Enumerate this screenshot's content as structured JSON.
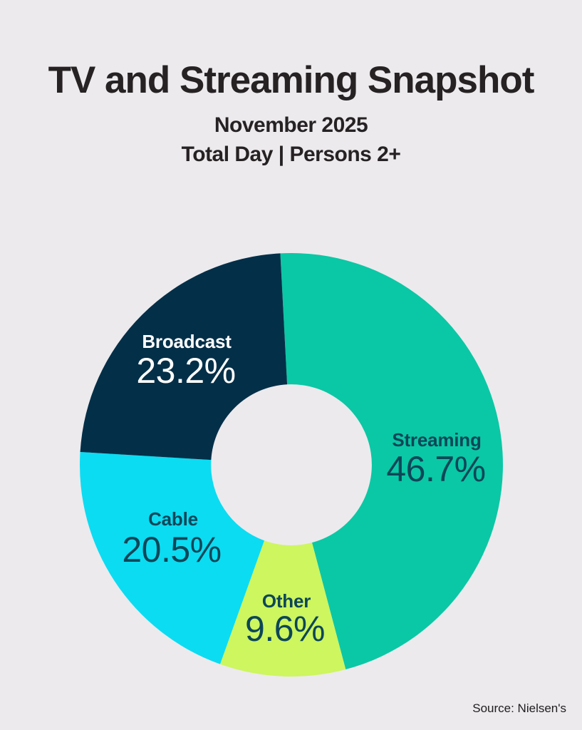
{
  "page": {
    "title": "TV and Streaming Snapshot",
    "subtitle_date": "November 2025",
    "subtitle_demo": "Total Day | Persons 2+",
    "source": "Source: Nielsen's",
    "background_color": "#ECEAED",
    "title_color": "#262224"
  },
  "chart_data": {
    "type": "pie",
    "subtype": "donut",
    "title": "TV and Streaming Snapshot",
    "subtitle": "November 2025 | Total Day | Persons 2+",
    "source": "Source: Nielsen's",
    "start_angle_deg": -3,
    "direction": "clockwise-from-top",
    "inner_radius_ratio": 0.38,
    "segments": [
      {
        "label": "Streaming",
        "value": 46.7,
        "display": "46.7%",
        "color": "#0AC8A5",
        "text_color": "#0D4658"
      },
      {
        "label": "Other",
        "value": 9.6,
        "display": "9.6%",
        "color": "#CDF65F",
        "text_color": "#0D4658"
      },
      {
        "label": "Cable",
        "value": 20.5,
        "display": "20.5%",
        "color": "#0BDCF2",
        "text_color": "#0D4658"
      },
      {
        "label": "Broadcast",
        "value": 23.2,
        "display": "23.2%",
        "color": "#042F48",
        "text_color": "#FFFFFF"
      }
    ]
  }
}
